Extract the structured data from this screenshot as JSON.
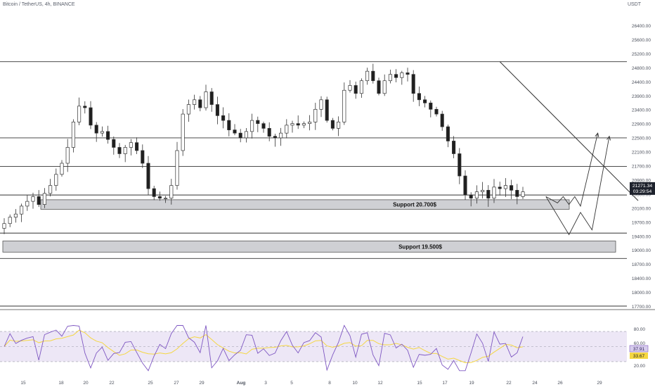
{
  "header": {
    "title": "Bitcoin / TetherUS, 4h, BINANCE",
    "currency": "USDT"
  },
  "colors": {
    "bull": "#ffffff",
    "bear": "#1f1f1f",
    "wick": "#333333",
    "line": "#333333",
    "zone_fill": "#cfd0d4",
    "zone_border": "#555555",
    "rsi": "#7e57c2",
    "rsi_ma": "#f5d742",
    "rsi_band": "#ede7f6",
    "axis_text": "#4a4f5b"
  },
  "chart_data": {
    "type": "candlestick",
    "title": "Bitcoin / TetherUS, 4h, BINANCE",
    "y_axis": {
      "ticks": [
        "26400.00",
        "25600.00",
        "25200.00",
        "24800.00",
        "24400.00",
        "23900.00",
        "23400.00",
        "22900.00",
        "22500.00",
        "22100.00",
        "21700.00",
        "20900.00",
        "20500.00",
        "20100.00",
        "19700.00",
        "19400.00",
        "19000.00",
        "18700.00",
        "18400.00",
        "18000.00",
        "17700.00"
      ]
    },
    "x_axis": {
      "ticks": [
        "15",
        "18",
        "20",
        "22",
        "25",
        "27",
        "29",
        "Aug",
        "3",
        "5",
        "8",
        "10",
        "12",
        "15",
        "17",
        "19",
        "22",
        "24",
        "26",
        "29"
      ]
    },
    "price_label": {
      "value": "21271.34",
      "countdown": "03:29:54"
    },
    "ohlc_path": [
      20100,
      20300,
      20400,
      20650,
      20800,
      20950,
      20700,
      21050,
      21300,
      21650,
      22000,
      22500,
      23300,
      23800,
      23750,
      23200,
      22950,
      23000,
      22750,
      22500,
      22300,
      22500,
      22650,
      22400,
      22000,
      21200,
      20950,
      20900,
      20900,
      21300,
      22400,
      23550,
      23850,
      24000,
      23750,
      24250,
      23850,
      23500,
      23350,
      23050,
      22950,
      22800,
      23000,
      23350,
      23250,
      23100,
      22850,
      22800,
      22950,
      23200,
      23250,
      23200,
      23250,
      23300,
      23700,
      24000,
      23350,
      23100,
      23300,
      24300,
      24450,
      24200,
      24600,
      24900,
      24600,
      24200,
      24600,
      24800,
      24700,
      24850,
      24800,
      24200,
      24000,
      23900,
      23700,
      23550,
      23150,
      22700,
      22300,
      21600,
      21000,
      20900,
      21100,
      21150,
      20900,
      21250,
      21200,
      21300,
      21150,
      20950,
      21100
    ],
    "horizontal_levels": [
      25200,
      22800,
      21900,
      21000,
      19800,
      19000,
      17500
    ],
    "zones": [
      {
        "label": "Support 20.700$",
        "low": 20550,
        "high": 20850
      },
      {
        "label": "Support 19.500$",
        "low": 19200,
        "high": 19550
      }
    ],
    "trendline": {
      "from": [
        86,
        25200
      ],
      "to": [
        110,
        21000
      ]
    },
    "projections": [
      {
        "points": [
          [
            94,
            20950
          ],
          [
            96,
            20750
          ],
          [
            97,
            20950
          ],
          [
            98,
            20700
          ],
          [
            99,
            20950
          ],
          [
            100,
            20650
          ],
          [
            103,
            22950
          ]
        ]
      },
      {
        "points": [
          [
            94,
            20950
          ],
          [
            98,
            19750
          ],
          [
            100,
            20450
          ],
          [
            102,
            19900
          ],
          [
            105,
            22850
          ]
        ]
      }
    ],
    "rsi": {
      "ticks": [
        "80.00",
        "60.00",
        "40.00",
        "20.00"
      ],
      "values": {
        "rsi": "37.91",
        "ma": "33.67"
      },
      "band": [
        30,
        70
      ]
    }
  }
}
